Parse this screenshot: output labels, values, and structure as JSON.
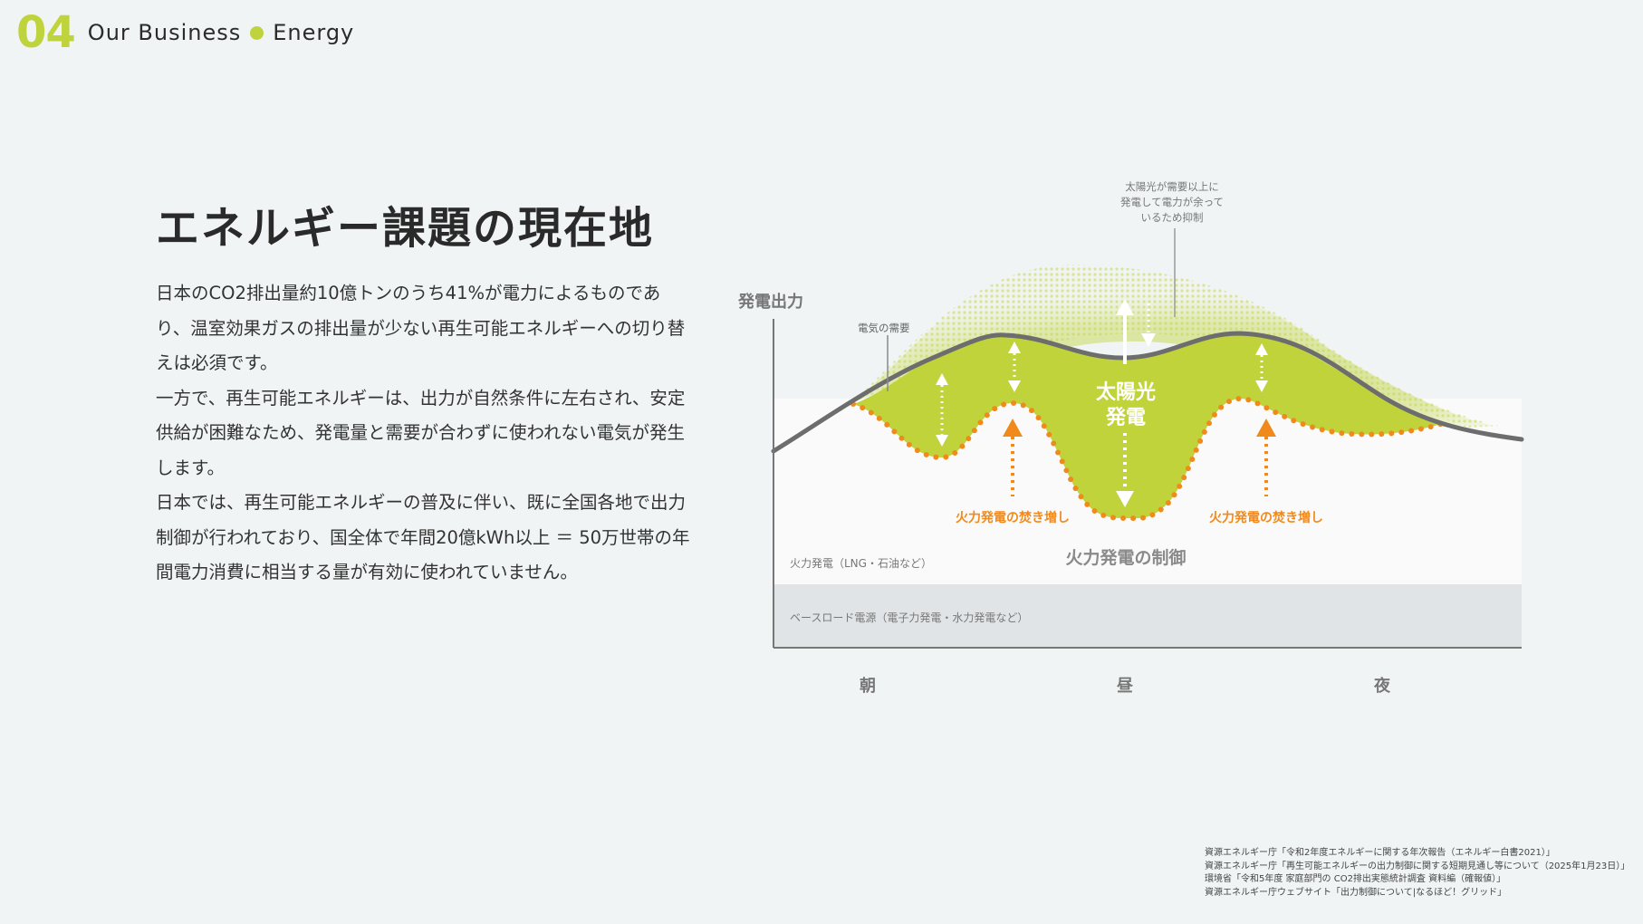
{
  "header": {
    "number": "04",
    "section": "Our Business",
    "subsection": "Energy",
    "accent_color": "#bfd33d"
  },
  "main": {
    "title": "エネルギー課題の現在地",
    "paragraphs": [
      "日本のCO2排出量約10億トンのうち41%が電力によるものであり、温室効果ガスの排出量が少ない再生可能エネルギーへの切り替えは必須です。",
      "一方で、再生可能エネルギーは、出力が自然条件に左右され、安定供給が困難なため、発電量と需要が合わずに使われない電気が発生します。",
      "日本では、再生可能エネルギーの普及に伴い、既に全国各地で出力制御が行われており、国全体で年間20億kWh以上 ＝ 50万世帯の年間電力消費に相当する量が有効に使われていません。"
    ]
  },
  "diagram": {
    "y_axis_label": "発電出力",
    "demand_label": "電気の需要",
    "curtail_note": [
      "太陽光が需要以上に",
      "発電して電力が余って",
      "いるため抑制"
    ],
    "solar_label": [
      "太陽光",
      "発電"
    ],
    "thermal_increase_label": "火力発電の焚き増し",
    "thermal_control_label": "火力発電の制御",
    "thermal_layer_label": "火力発電（LNG・石油など）",
    "baseload_label": "ベースロード電源（電子力発電・水力発電など）",
    "x_labels": [
      "朝",
      "昼",
      "夜"
    ],
    "colors": {
      "solar": "#c0d33a",
      "solar_excess": "#d3df86",
      "demand": "#6d6d6d",
      "thermal_adjust": "#f08a1d",
      "baseload": "#e1e4e6",
      "thermal": "#fafafa"
    }
  },
  "references": [
    "資源エネルギー庁「令和2年度エネルギーに関する年次報告（エネルギー白書2021）」",
    "資源エネルギー庁「再生可能エネルギーの出力制御に関する短期見通し等について（2025年1月23日）」",
    "環境省「令和5年度 家庭部門の CO2排出実態統計調査 資料編（確報値）」",
    "資源エネルギー庁ウェブサイト「出力制御について|なるほど！グリッド」"
  ]
}
